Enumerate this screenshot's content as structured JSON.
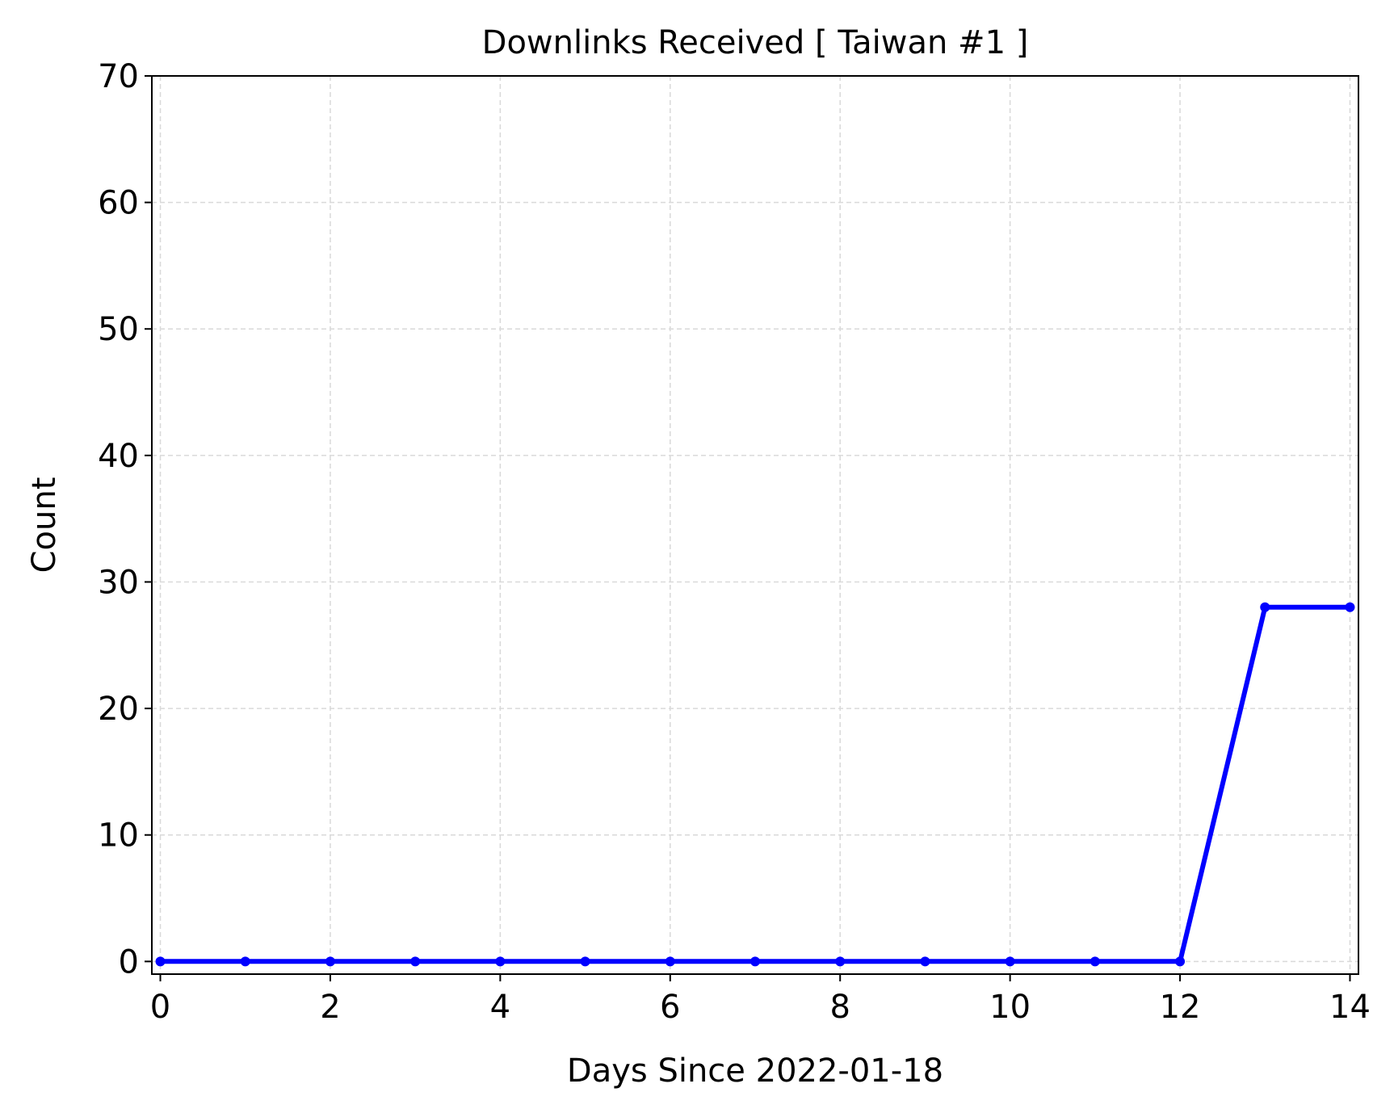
{
  "chart_data": {
    "type": "line",
    "title": "Downlinks Received [ Taiwan #1 ]",
    "xlabel": "Days Since 2022-01-18",
    "ylabel": "Count",
    "xlim": [
      -0.1,
      14.1
    ],
    "ylim": [
      -1,
      70
    ],
    "x_ticks": [
      0,
      2,
      4,
      6,
      8,
      10,
      12,
      14
    ],
    "y_ticks": [
      0,
      10,
      20,
      30,
      40,
      50,
      60,
      70
    ],
    "grid": true,
    "series": [
      {
        "color": "#0000ff",
        "x": [
          0,
          1,
          2,
          3,
          4,
          5,
          6,
          7,
          8,
          9,
          10,
          11,
          12,
          13,
          14
        ],
        "y": [
          0,
          0,
          0,
          0,
          0,
          0,
          0,
          0,
          0,
          0,
          0,
          0,
          0,
          28,
          28
        ]
      }
    ]
  }
}
